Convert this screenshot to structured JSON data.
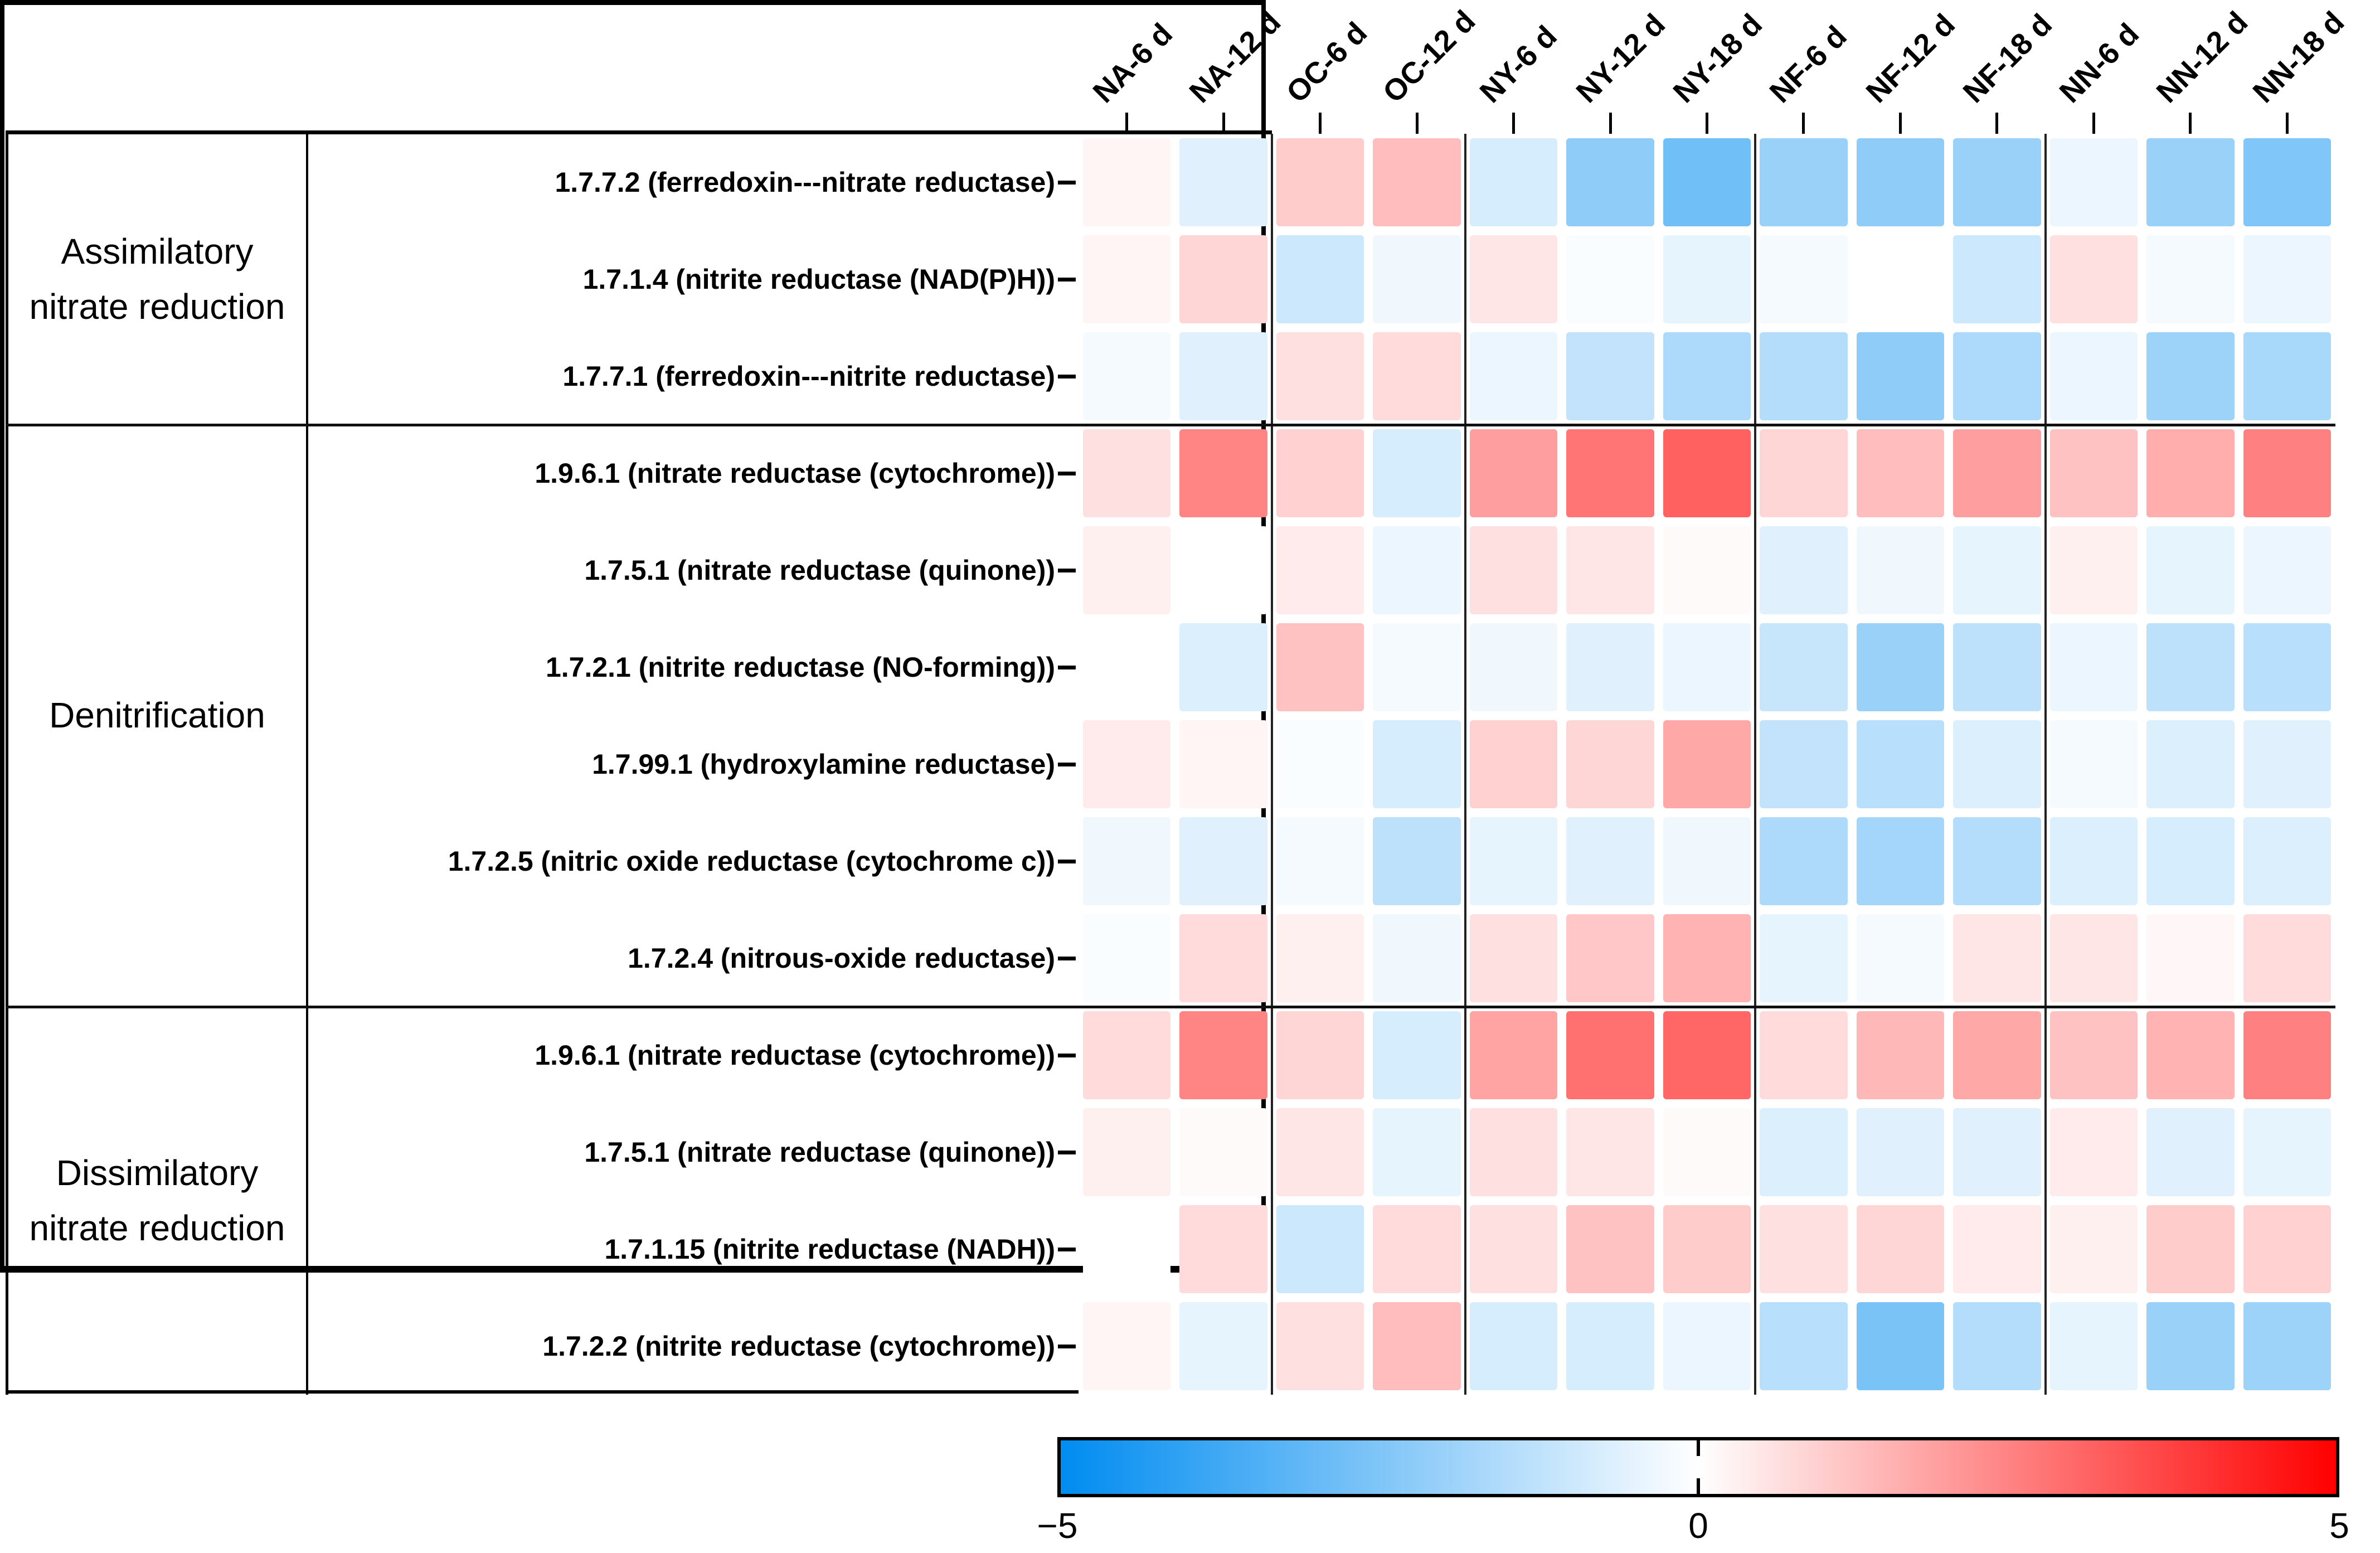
{
  "chart_data": {
    "type": "heatmap",
    "title": "",
    "value_range": [
      -5,
      5
    ],
    "grid": false,
    "legend_position": "bottom",
    "columns": [
      "NA-6 d",
      "NA-12 d",
      "OC-6 d",
      "OC-12 d",
      "NY-6 d",
      "NY-12 d",
      "NY-18 d",
      "NF-6 d",
      "NF-12 d",
      "NF-18 d",
      "NN-6 d",
      "NN-12 d",
      "NN-18 d"
    ],
    "column_groups": [
      2,
      2,
      3,
      3,
      3
    ],
    "row_groups": [
      {
        "label": "Assimilatory nitrate reduction",
        "rows": [
          {
            "label": "1.7.7.2 (ferredoxin---nitrate reductase)",
            "values": [
              0.2,
              -0.6,
              1.0,
              1.3,
              -0.8,
              -2.2,
              -2.8,
              -2.0,
              -2.2,
              -2.0,
              -0.4,
              -2.0,
              -2.5
            ]
          },
          {
            "label": "1.7.1.4 (nitrite reductase (NAD(P)H))",
            "values": [
              0.2,
              0.8,
              -1.0,
              -0.3,
              0.5,
              -0.1,
              -0.5,
              -0.2,
              0.0,
              -1.0,
              0.6,
              -0.2,
              -0.4
            ]
          },
          {
            "label": "1.7.7.1 (ferredoxin---nitrite reductase)",
            "values": [
              -0.2,
              -0.6,
              0.6,
              0.7,
              -0.4,
              -1.2,
              -1.6,
              -1.5,
              -2.2,
              -1.6,
              -0.4,
              -1.9,
              -1.7
            ]
          }
        ]
      },
      {
        "label": "Denitrification",
        "rows": [
          {
            "label": "1.9.6.1 (nitrate reductase (cytochrome))",
            "values": [
              0.6,
              2.4,
              0.9,
              -0.8,
              1.9,
              2.7,
              3.1,
              0.8,
              1.3,
              1.9,
              1.2,
              1.6,
              2.5
            ]
          },
          {
            "label": "1.7.5.1 (nitrate reductase (quinone))",
            "values": [
              0.3,
              0.0,
              0.4,
              -0.4,
              0.6,
              0.5,
              0.1,
              -0.6,
              -0.3,
              -0.5,
              0.3,
              -0.5,
              -0.4
            ]
          },
          {
            "label": "1.7.2.1 (nitrite reductase (NO-forming))",
            "values": [
              0.0,
              -0.7,
              1.2,
              -0.2,
              -0.3,
              -0.6,
              -0.4,
              -1.1,
              -2.0,
              -1.3,
              -0.4,
              -1.3,
              -1.4
            ]
          },
          {
            "label": "1.7.99.1 (hydroxylamine reductase)",
            "values": [
              0.4,
              0.2,
              -0.1,
              -0.8,
              0.9,
              0.8,
              1.7,
              -1.2,
              -1.4,
              -0.7,
              -0.2,
              -0.7,
              -0.6
            ]
          },
          {
            "label": "1.7.2.5 (nitric oxide reductase (cytochrome c))",
            "values": [
              -0.3,
              -0.6,
              -0.2,
              -1.3,
              -0.5,
              -0.6,
              -0.3,
              -1.6,
              -1.8,
              -1.5,
              -0.7,
              -0.8,
              -0.7
            ]
          },
          {
            "label": "1.7.2.4 (nitrous-oxide reductase)",
            "values": [
              -0.1,
              0.7,
              0.3,
              -0.3,
              0.6,
              1.1,
              1.5,
              -0.5,
              -0.2,
              0.5,
              0.5,
              0.15,
              0.7
            ]
          }
        ]
      },
      {
        "label": "Dissimilatory nitrate reduction",
        "rows": [
          {
            "label": "1.9.6.1 (nitrate reductase (cytochrome))",
            "values": [
              0.7,
              2.4,
              0.8,
              -0.8,
              1.8,
              2.8,
              3.0,
              0.7,
              1.4,
              1.7,
              1.2,
              1.5,
              2.5
            ]
          },
          {
            "label": "1.7.5.1 (nitrate reductase (quinone))",
            "values": [
              0.3,
              0.1,
              0.5,
              -0.5,
              0.6,
              0.5,
              0.1,
              -0.7,
              -0.6,
              -0.6,
              0.4,
              -0.6,
              -0.5
            ]
          },
          {
            "label": "1.7.1.15 (nitrite reductase (NADH))",
            "values": [
              0.0,
              0.7,
              -1.0,
              0.7,
              0.6,
              1.2,
              1.0,
              0.6,
              0.8,
              0.4,
              0.3,
              1.0,
              0.9
            ]
          },
          {
            "label": "1.7.2.2 (nitrite reductase (cytochrome))",
            "values": [
              0.2,
              -0.5,
              0.6,
              1.3,
              -0.8,
              -0.8,
              -0.4,
              -1.4,
              -2.6,
              -1.5,
              -0.5,
              -2.0,
              -1.9
            ]
          }
        ]
      }
    ],
    "colorbar": {
      "min": -5,
      "mid": 0,
      "max": 5,
      "min_label": "−5",
      "mid_label": "0",
      "max_label": "5",
      "min_color": "#008CF0",
      "mid_color": "#FFFFFF",
      "max_color": "#FF0000"
    }
  }
}
